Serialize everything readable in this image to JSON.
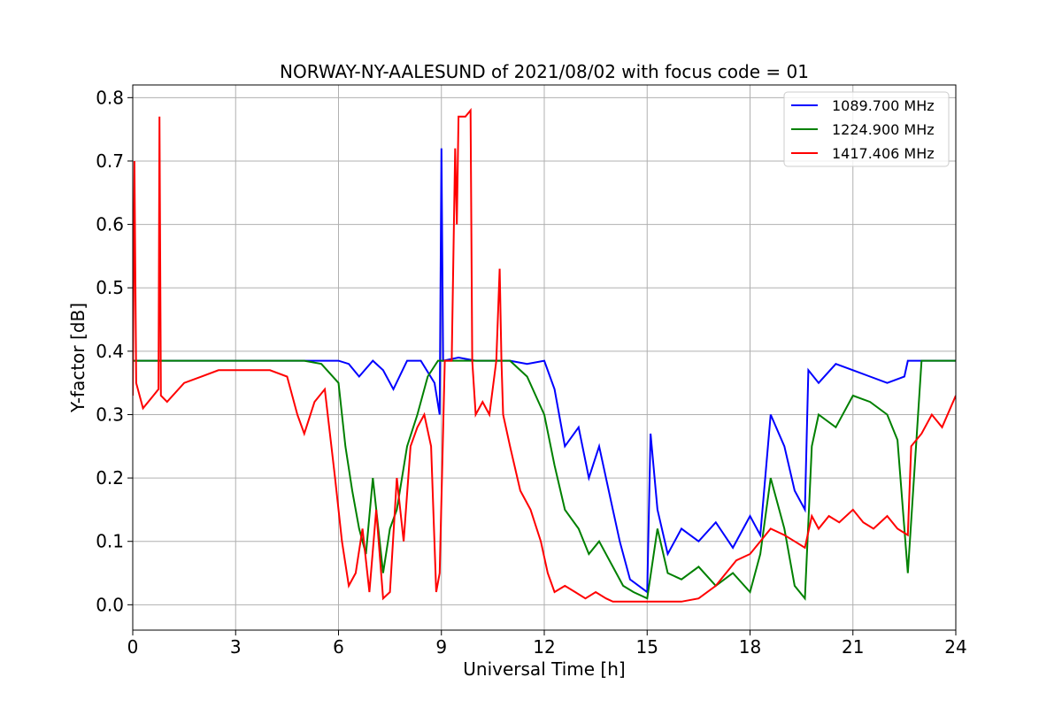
{
  "chart_data": {
    "type": "line",
    "title": "NORWAY-NY-AALESUND of 2021/08/02 with focus code = 01",
    "xlabel": "Universal Time [h]",
    "ylabel": "Y-factor [dB]",
    "xlim": [
      0,
      24
    ],
    "ylim": [
      -0.04,
      0.82
    ],
    "xticks": [
      0,
      3,
      6,
      9,
      12,
      15,
      18,
      21,
      24
    ],
    "yticks": [
      0.0,
      0.1,
      0.2,
      0.3,
      0.4,
      0.5,
      0.6,
      0.7,
      0.8
    ],
    "ytick_labels": [
      "0.0",
      "0.1",
      "0.2",
      "0.3",
      "0.4",
      "0.5",
      "0.6",
      "0.7",
      "0.8"
    ],
    "grid": true,
    "legend_position": "top-right",
    "series": [
      {
        "name": "1089.700 MHz",
        "color": "#0000ff",
        "x": [
          0,
          0.5,
          1,
          2,
          3,
          4,
          5,
          5.5,
          6,
          6.3,
          6.6,
          7,
          7.3,
          7.6,
          8,
          8.4,
          8.8,
          8.95,
          9.0,
          9.05,
          9.5,
          10,
          11,
          11.5,
          12,
          12.3,
          12.6,
          13,
          13.3,
          13.6,
          14,
          14.2,
          14.5,
          15,
          15.1,
          15.3,
          15.6,
          16,
          16.5,
          17,
          17.5,
          18,
          18.3,
          18.6,
          19,
          19.3,
          19.6,
          19.7,
          20,
          20.5,
          21,
          21.5,
          22,
          22.5,
          22.6,
          23,
          23.5,
          24
        ],
        "y": [
          0.385,
          0.385,
          0.385,
          0.385,
          0.385,
          0.385,
          0.385,
          0.385,
          0.385,
          0.38,
          0.36,
          0.385,
          0.37,
          0.34,
          0.385,
          0.385,
          0.35,
          0.3,
          0.72,
          0.385,
          0.39,
          0.385,
          0.385,
          0.38,
          0.385,
          0.34,
          0.25,
          0.28,
          0.2,
          0.25,
          0.15,
          0.1,
          0.04,
          0.02,
          0.27,
          0.15,
          0.08,
          0.12,
          0.1,
          0.13,
          0.09,
          0.14,
          0.11,
          0.3,
          0.25,
          0.18,
          0.15,
          0.37,
          0.35,
          0.38,
          0.37,
          0.36,
          0.35,
          0.36,
          0.385,
          0.385,
          0.385,
          0.385
        ]
      },
      {
        "name": "1224.900 MHz",
        "color": "#008000",
        "x": [
          0,
          1,
          2,
          3,
          4,
          5,
          5.5,
          6,
          6.2,
          6.4,
          6.6,
          6.8,
          7,
          7.3,
          7.5,
          7.7,
          8,
          8.3,
          8.6,
          8.9,
          9.2,
          9.5,
          10,
          10.5,
          11,
          11.5,
          12,
          12.3,
          12.6,
          13,
          13.3,
          13.6,
          14,
          14.3,
          14.6,
          15,
          15.3,
          15.6,
          16,
          16.5,
          17,
          17.5,
          18,
          18.3,
          18.6,
          19,
          19.3,
          19.6,
          19.8,
          20,
          20.5,
          21,
          21.5,
          22,
          22.3,
          22.6,
          23,
          23.5,
          24
        ],
        "y": [
          0.385,
          0.385,
          0.385,
          0.385,
          0.385,
          0.385,
          0.38,
          0.35,
          0.25,
          0.18,
          0.12,
          0.08,
          0.2,
          0.05,
          0.12,
          0.15,
          0.25,
          0.3,
          0.36,
          0.385,
          0.385,
          0.385,
          0.385,
          0.385,
          0.385,
          0.36,
          0.3,
          0.22,
          0.15,
          0.12,
          0.08,
          0.1,
          0.06,
          0.03,
          0.02,
          0.01,
          0.12,
          0.05,
          0.04,
          0.06,
          0.03,
          0.05,
          0.02,
          0.08,
          0.2,
          0.12,
          0.03,
          0.01,
          0.25,
          0.3,
          0.28,
          0.33,
          0.32,
          0.3,
          0.26,
          0.05,
          0.385,
          0.385,
          0.385
        ]
      },
      {
        "name": "1417.406 MHz",
        "color": "#ff0000",
        "x": [
          0,
          0.05,
          0.1,
          0.3,
          0.6,
          0.75,
          0.78,
          0.82,
          1,
          1.5,
          2,
          2.5,
          3,
          3.5,
          4,
          4.5,
          4.8,
          5,
          5.3,
          5.6,
          5.9,
          6.1,
          6.3,
          6.5,
          6.7,
          6.9,
          7.1,
          7.3,
          7.5,
          7.7,
          7.9,
          8.1,
          8.3,
          8.5,
          8.7,
          8.85,
          8.95,
          9.1,
          9.3,
          9.4,
          9.45,
          9.5,
          9.7,
          9.85,
          9.9,
          10.0,
          10.2,
          10.4,
          10.6,
          10.7,
          10.75,
          10.8,
          11,
          11.3,
          11.6,
          11.9,
          12.1,
          12.3,
          12.6,
          12.9,
          13.2,
          13.5,
          13.8,
          14,
          14.5,
          15,
          15.5,
          16,
          16.5,
          17,
          17.3,
          17.6,
          18,
          18.3,
          18.6,
          19,
          19.3,
          19.6,
          19.8,
          20,
          20.3,
          20.6,
          21,
          21.3,
          21.6,
          22,
          22.3,
          22.6,
          22.7,
          23,
          23.3,
          23.6,
          24
        ],
        "y": [
          0.33,
          0.7,
          0.35,
          0.31,
          0.33,
          0.34,
          0.77,
          0.33,
          0.32,
          0.35,
          0.36,
          0.37,
          0.37,
          0.37,
          0.37,
          0.36,
          0.3,
          0.27,
          0.32,
          0.34,
          0.2,
          0.1,
          0.03,
          0.05,
          0.12,
          0.02,
          0.15,
          0.01,
          0.02,
          0.2,
          0.1,
          0.25,
          0.28,
          0.3,
          0.25,
          0.02,
          0.05,
          0.385,
          0.385,
          0.72,
          0.6,
          0.77,
          0.77,
          0.78,
          0.385,
          0.3,
          0.32,
          0.3,
          0.385,
          0.53,
          0.385,
          0.3,
          0.25,
          0.18,
          0.15,
          0.1,
          0.05,
          0.02,
          0.03,
          0.02,
          0.01,
          0.02,
          0.01,
          0.005,
          0.005,
          0.005,
          0.005,
          0.005,
          0.01,
          0.03,
          0.05,
          0.07,
          0.08,
          0.1,
          0.12,
          0.11,
          0.1,
          0.09,
          0.14,
          0.12,
          0.14,
          0.13,
          0.15,
          0.13,
          0.12,
          0.14,
          0.12,
          0.11,
          0.25,
          0.27,
          0.3,
          0.28,
          0.33
        ]
      }
    ]
  }
}
